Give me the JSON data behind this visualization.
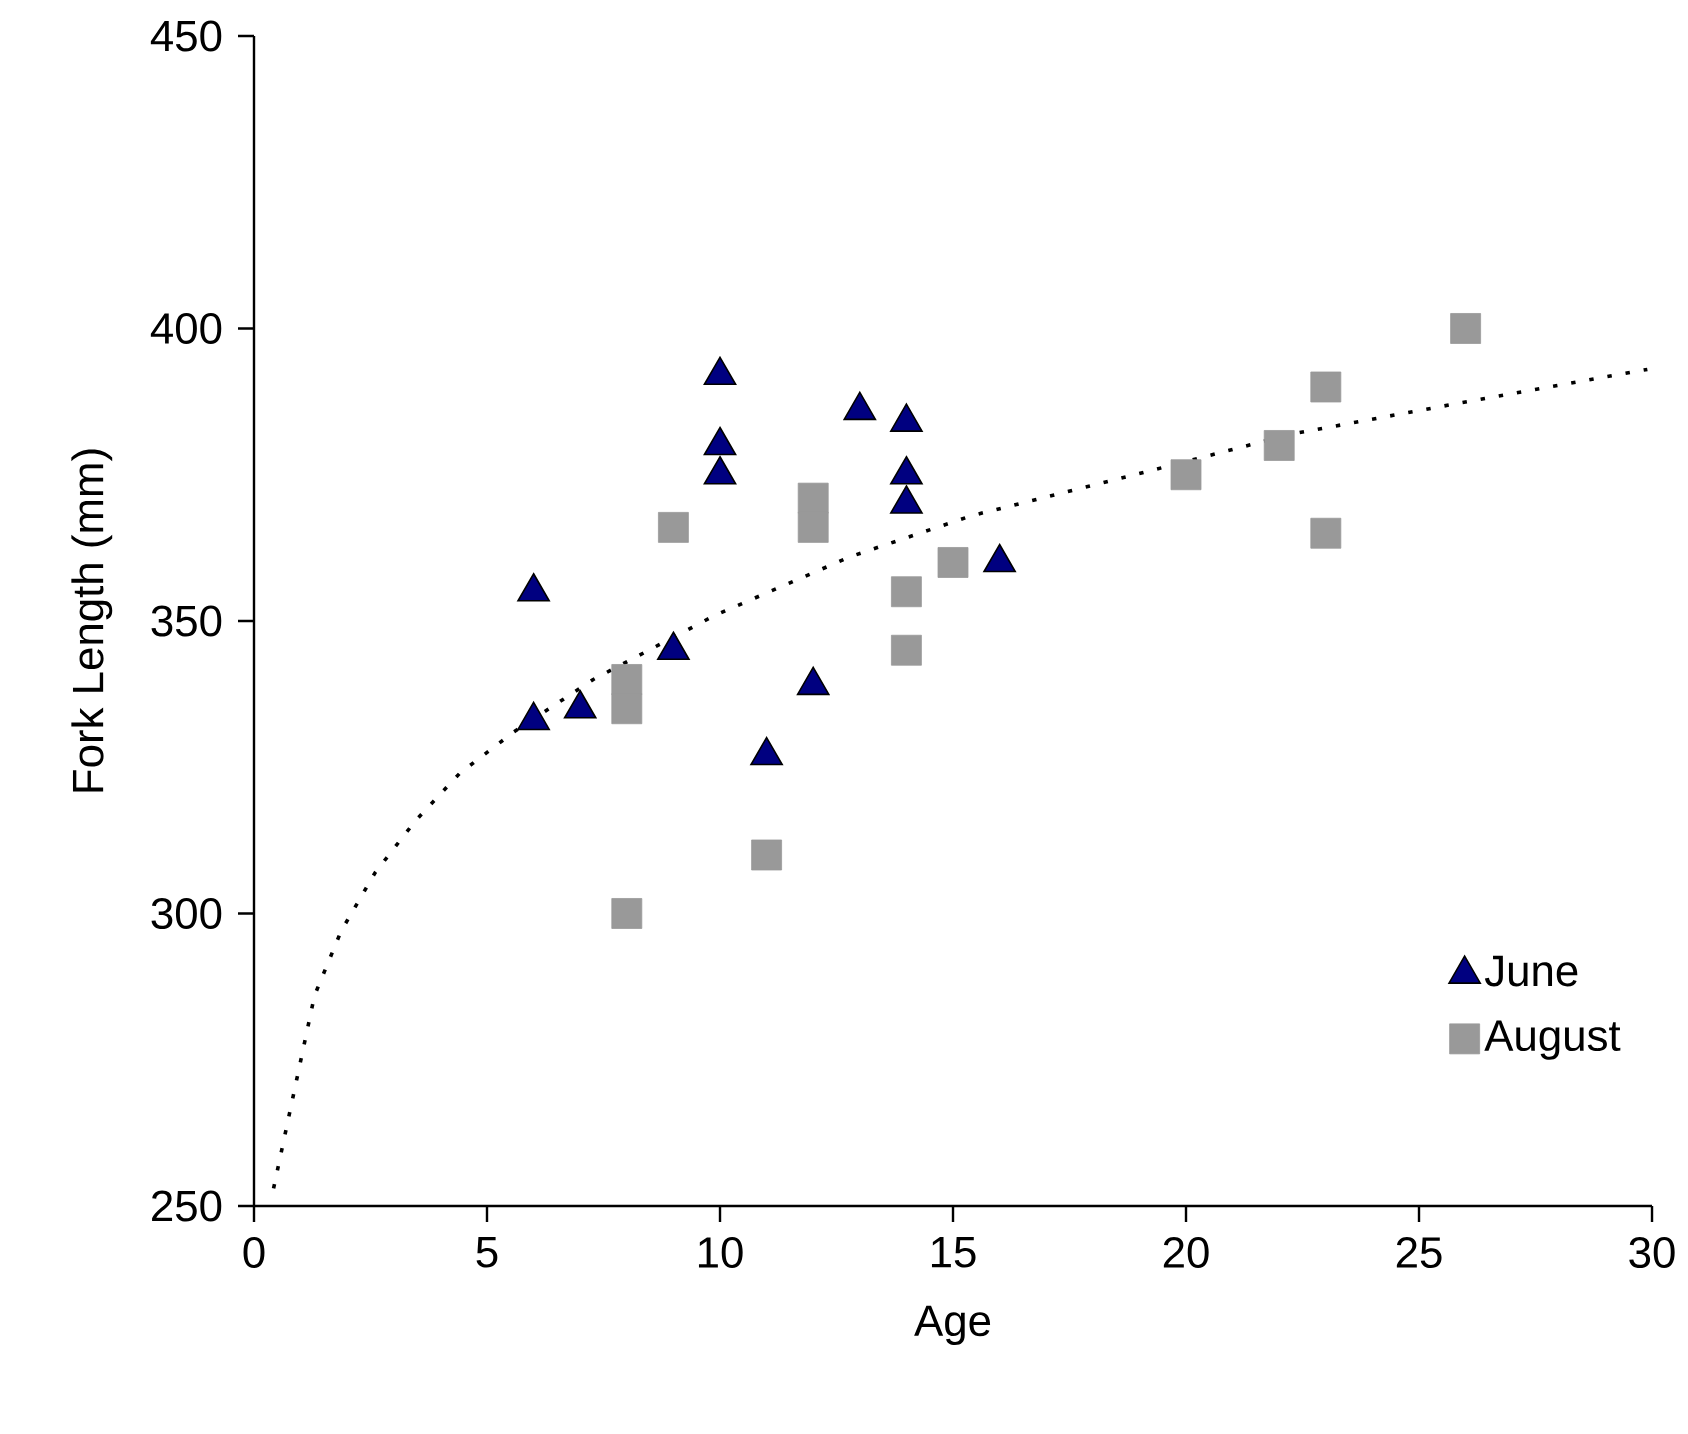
{
  "chart_data": {
    "type": "scatter",
    "xlabel": "Age",
    "ylabel": "Fork Length (mm)",
    "xlim": [
      0,
      30
    ],
    "ylim": [
      250,
      450
    ],
    "xticks": [
      0,
      5,
      10,
      15,
      20,
      25,
      30
    ],
    "yticks": [
      250,
      300,
      350,
      400,
      450
    ],
    "legend": "bottom right",
    "series": [
      {
        "name": "June",
        "marker": "triangle",
        "color": "#000080",
        "x": [
          6,
          6,
          7,
          9,
          10,
          10,
          10,
          11,
          12,
          13,
          14,
          14,
          14,
          16
        ],
        "values": [
          355,
          333,
          335,
          345,
          392,
          380,
          375,
          327,
          339,
          386,
          384,
          375,
          370,
          360
        ]
      },
      {
        "name": "August",
        "marker": "square",
        "color": "#999999",
        "x": [
          8,
          8,
          8,
          9,
          11,
          12,
          12,
          14,
          14,
          15,
          20,
          22,
          23,
          23,
          26
        ],
        "values": [
          340,
          335,
          300,
          366,
          310,
          371,
          366,
          355,
          345,
          360,
          375,
          380,
          390,
          365,
          400
        ]
      },
      {
        "type": "line",
        "marker": "none",
        "line_style": "dotted",
        "color": "#000000",
        "x": [
          0.42,
          1.3,
          1.87,
          2.6,
          3.48,
          4.42,
          5.57,
          7.28,
          9.9,
          12.8,
          15.4,
          18.9,
          22.3,
          25.7,
          29.9
        ],
        "values": [
          253,
          286,
          297,
          307,
          316,
          324,
          331,
          340,
          351,
          361,
          368,
          375,
          382,
          387,
          393
        ]
      }
    ]
  }
}
